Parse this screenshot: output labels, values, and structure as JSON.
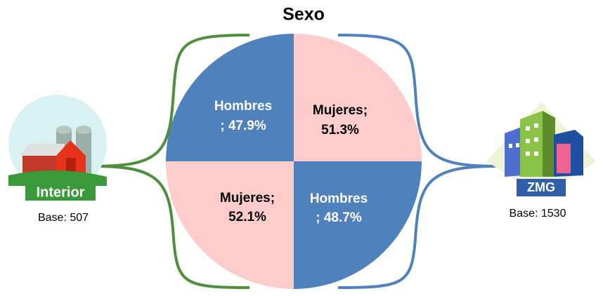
{
  "title": "Sexo",
  "left": {
    "label": "Interior",
    "base": "Base: 507",
    "segments": [
      {
        "lines": [
          "Hombres",
          "; 47.9%"
        ]
      },
      {
        "lines": [
          "Mujeres;",
          "52.1%"
        ]
      }
    ]
  },
  "right": {
    "label": "ZMG",
    "base": "Base: 1530",
    "segments": [
      {
        "lines": [
          "Mujeres;",
          "51.3%"
        ]
      },
      {
        "lines": [
          "Hombres",
          "; 48.7%"
        ]
      }
    ]
  }
}
